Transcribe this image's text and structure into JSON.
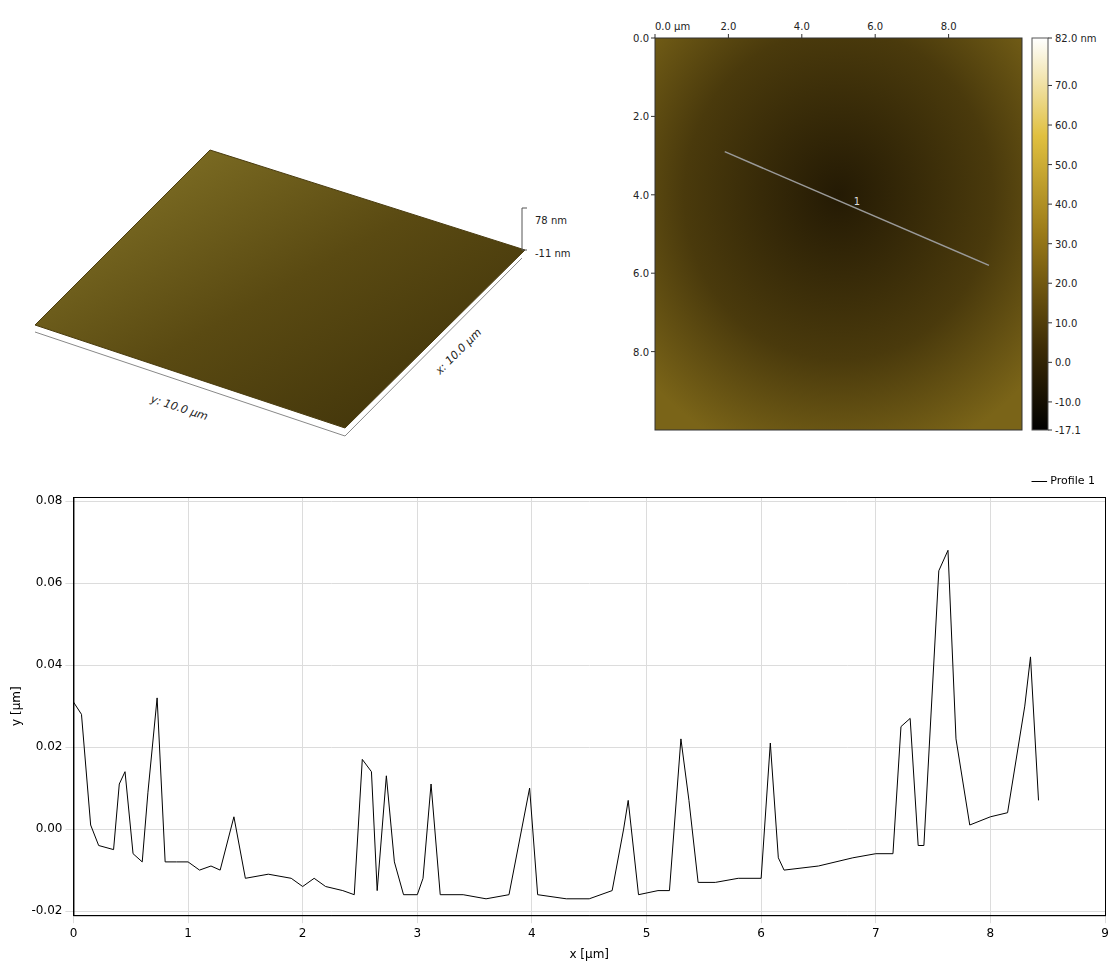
{
  "chart_data": {
    "type": "line",
    "x_label": "x [µm]",
    "y_label": "y [µm]",
    "grid": true,
    "legend": "top-right",
    "xlim": [
      0,
      9
    ],
    "xticks": [
      0,
      1,
      2,
      3,
      4,
      5,
      6,
      7,
      8,
      9
    ],
    "ylim": [
      -0.021,
      0.081
    ],
    "yticks": [
      {
        "value": -0.02,
        "label": "-0.02"
      },
      {
        "value": 0,
        "label": "0.00"
      },
      {
        "value": 0.02,
        "label": "0.02"
      },
      {
        "value": 0.04,
        "label": "0.04"
      },
      {
        "value": 0.06,
        "label": "0.06"
      },
      {
        "value": 0.08,
        "label": "0.08"
      }
    ],
    "series": [
      {
        "name": "Profile 1",
        "color": "#000000",
        "line_style": "solid",
        "x": [
          0,
          0.07,
          0.15,
          0.22,
          0.35,
          0.4,
          0.45,
          0.52,
          0.6,
          0.65,
          0.73,
          0.8,
          0.9,
          1.0,
          1.1,
          1.2,
          1.28,
          1.4,
          1.5,
          1.7,
          1.9,
          2.0,
          2.1,
          2.2,
          2.35,
          2.45,
          2.52,
          2.6,
          2.65,
          2.73,
          2.8,
          2.88,
          3.0,
          3.05,
          3.12,
          3.2,
          3.4,
          3.6,
          3.8,
          3.98,
          4.05,
          4.3,
          4.5,
          4.7,
          4.8,
          4.84,
          4.93,
          5.1,
          5.2,
          5.3,
          5.37,
          5.45,
          5.6,
          5.8,
          6.0,
          6.08,
          6.15,
          6.2,
          6.5,
          6.8,
          7.0,
          7.15,
          7.22,
          7.3,
          7.37,
          7.42,
          7.55,
          7.63,
          7.7,
          7.82,
          8.0,
          8.15,
          8.3,
          8.35,
          8.42
        ],
        "values": [
          0.031,
          0.028,
          0.001,
          -0.004,
          -0.005,
          0.011,
          0.014,
          -0.006,
          -0.008,
          0.009,
          0.032,
          -0.008,
          -0.008,
          -0.008,
          -0.01,
          -0.009,
          -0.01,
          0.003,
          -0.012,
          -0.011,
          -0.012,
          -0.014,
          -0.012,
          -0.014,
          -0.015,
          -0.016,
          0.017,
          0.014,
          -0.015,
          0.013,
          -0.008,
          -0.016,
          -0.016,
          -0.012,
          0.011,
          -0.016,
          -0.016,
          -0.017,
          -0.016,
          0.01,
          -0.016,
          -0.017,
          -0.017,
          -0.015,
          0.0,
          0.007,
          -0.016,
          -0.015,
          -0.015,
          0.022,
          0.007,
          -0.013,
          -0.013,
          -0.012,
          -0.012,
          0.021,
          -0.007,
          -0.01,
          -0.009,
          -0.007,
          -0.006,
          -0.006,
          0.025,
          0.027,
          -0.004,
          -0.004,
          0.063,
          0.068,
          0.022,
          0.001,
          0.003,
          0.004,
          0.03,
          0.042,
          0.007
        ]
      }
    ]
  },
  "surface_3d": {
    "z_labels": [
      "78 nm",
      "-11 nm"
    ],
    "x_label": "x: 10.0 µm",
    "y_label": "y: 10.0 µm"
  },
  "height_map": {
    "xlim": [
      0,
      10
    ],
    "ylim": [
      0,
      10
    ],
    "xticks": [
      {
        "value": 0,
        "label": "0.0 µm"
      },
      {
        "value": 2,
        "label": "2.0"
      },
      {
        "value": 4,
        "label": "4.0"
      },
      {
        "value": 6,
        "label": "6.0"
      },
      {
        "value": 8,
        "label": "8.0"
      }
    ],
    "yticks": [
      {
        "value": 0,
        "label": "0.0"
      },
      {
        "value": 2,
        "label": "2.0"
      },
      {
        "value": 4,
        "label": "4.0"
      },
      {
        "value": 6,
        "label": "6.0"
      },
      {
        "value": 8,
        "label": "8.0"
      }
    ],
    "profile_line": {
      "label": "1",
      "start": [
        1.9,
        2.9
      ],
      "end": [
        9.1,
        5.8
      ]
    },
    "colorbar": {
      "range": [
        -17.1,
        82.0
      ],
      "ticks": [
        {
          "value": 82.0,
          "label": "82.0 nm"
        },
        {
          "value": 70,
          "label": "70.0"
        },
        {
          "value": 60,
          "label": "60.0"
        },
        {
          "value": 50,
          "label": "50.0"
        },
        {
          "value": 40,
          "label": "40.0"
        },
        {
          "value": 30,
          "label": "30.0"
        },
        {
          "value": 20,
          "label": "20.0"
        },
        {
          "value": 10,
          "label": "10.0"
        },
        {
          "value": 0,
          "label": "0.0"
        },
        {
          "value": -10,
          "label": "-10.0"
        },
        {
          "value": -17.1,
          "label": "-17.1"
        }
      ]
    }
  }
}
